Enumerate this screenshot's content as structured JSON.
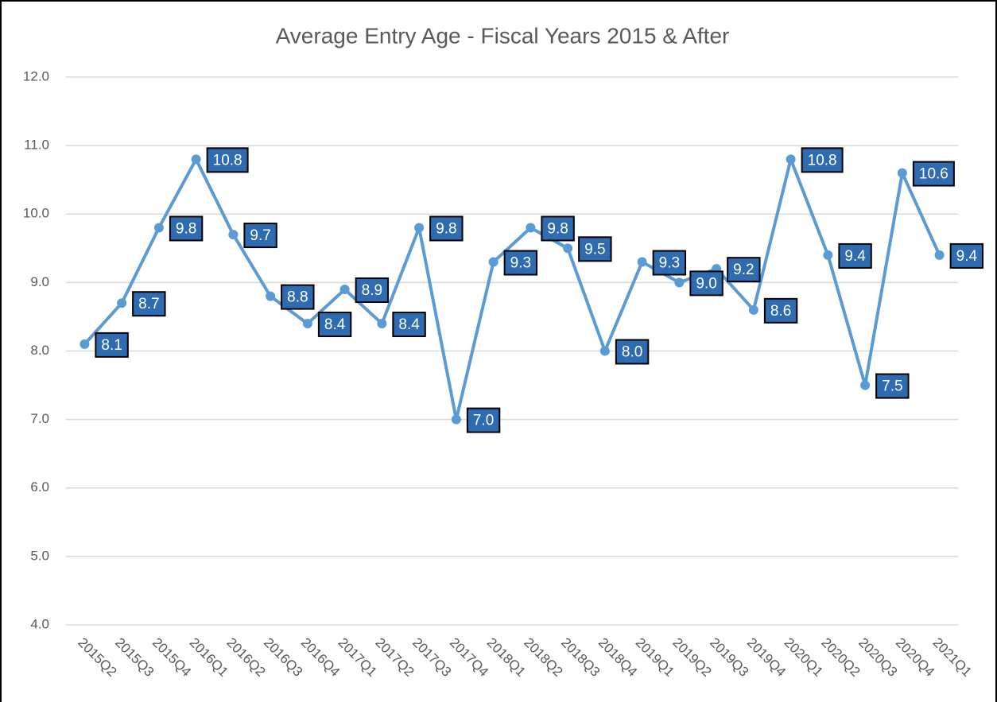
{
  "chart_data": {
    "type": "line",
    "title": "Average Entry Age - Fiscal Years 2015 & After",
    "categories": [
      "2015Q2",
      "2015Q3",
      "2015Q4",
      "2016Q1",
      "2016Q2",
      "2016Q3",
      "2016Q4",
      "2017Q1",
      "2017Q2",
      "2017Q3",
      "2017Q4",
      "2018Q1",
      "2018Q2",
      "2018Q3",
      "2018Q4",
      "2019Q1",
      "2019Q2",
      "2019Q3",
      "2019Q4",
      "2020Q1",
      "2020Q2",
      "2020Q3",
      "2020Q4",
      "2021Q1"
    ],
    "series": [
      {
        "name": "Average Entry Age",
        "color": "#5b9bd5",
        "values": [
          8.1,
          8.7,
          9.8,
          10.8,
          9.7,
          8.8,
          8.4,
          8.9,
          8.4,
          9.8,
          7.0,
          9.3,
          9.8,
          9.5,
          8.0,
          9.3,
          9.0,
          9.2,
          8.6,
          10.8,
          9.4,
          7.5,
          10.6,
          9.4
        ],
        "value_labels": [
          "8.1",
          "8.7",
          "9.8",
          "10.8",
          "9.7",
          "8.8",
          "8.4",
          "8.9",
          "8.4",
          "9.8",
          "7.0",
          "9.3",
          "9.8",
          "9.5",
          "8.0",
          "9.3",
          "9.0",
          "9.2",
          "8.6",
          "10.8",
          "9.4",
          "7.5",
          "10.6",
          "9.4"
        ]
      }
    ],
    "label_box_color": "#2e6bb0",
    "ylim": [
      4,
      12
    ],
    "yticks": [
      {
        "value": 4,
        "label": "4.0"
      },
      {
        "value": 5,
        "label": "5.0"
      },
      {
        "value": 6,
        "label": "6.0"
      },
      {
        "value": 7,
        "label": "7.0"
      },
      {
        "value": 8,
        "label": "8.0"
      },
      {
        "value": 9,
        "label": "9.0"
      },
      {
        "value": 10,
        "label": "10.0"
      },
      {
        "value": 11,
        "label": "11.0"
      },
      {
        "value": 12,
        "label": "12.0"
      }
    ],
    "grid": true
  }
}
